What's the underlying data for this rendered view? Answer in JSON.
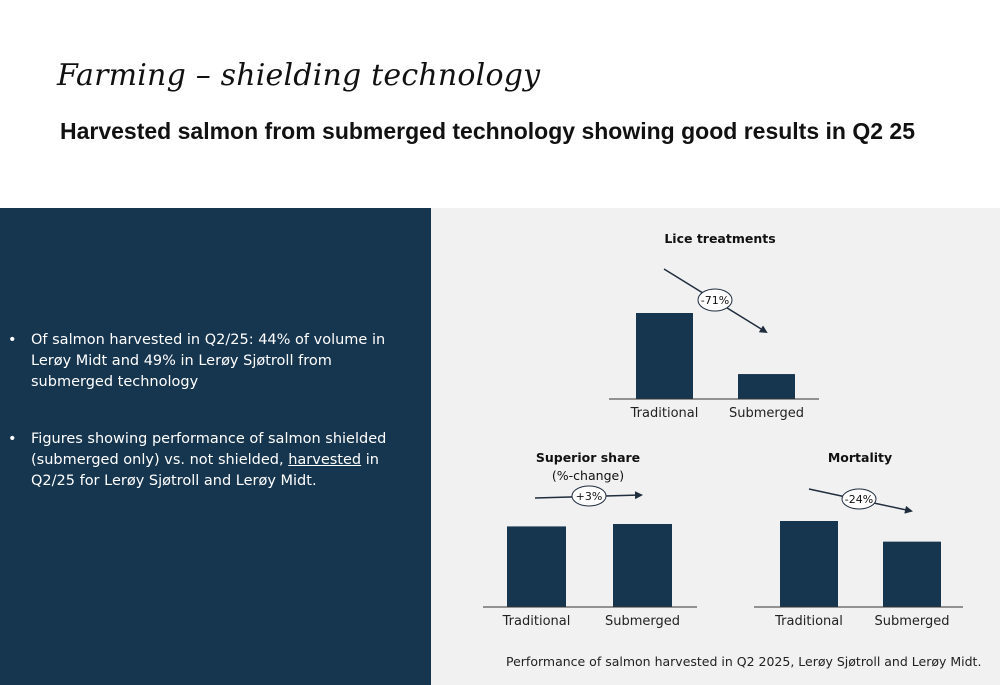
{
  "header": {
    "script_title": "Farming – shielding technology",
    "headline": "Harvested salmon from submerged technology showing good results in Q2 25"
  },
  "bullets": {
    "dot": "•",
    "b1": "Of salmon harvested in Q2/25: 44% of volume in Lerøy Midt and 49% in Lerøy Sjøtroll from submerged technology",
    "b2_before": "Figures showing performance of salmon shielded (submerged only) vs. not shielded, ",
    "b2_underlined": "harvested",
    "b2_after": " in Q2/25 for Lerøy Sjøtroll and Lerøy Midt."
  },
  "footnote": "Performance of salmon harvested in Q2 2025, Lerøy Sjøtroll and Lerøy Midt.",
  "colors": {
    "bar": "#16354f",
    "panel": "#16354f",
    "background": "#f1f1f1"
  },
  "chart_data": [
    {
      "type": "bar",
      "title": "Lice treatments",
      "subtitle": "",
      "categories": [
        "Traditional",
        "Submerged"
      ],
      "values": [
        100,
        29
      ],
      "annotation": "-71%",
      "ylim": [
        0,
        100
      ]
    },
    {
      "type": "bar",
      "title": "Superior share",
      "subtitle": "(%-change)",
      "categories": [
        "Traditional",
        "Submerged"
      ],
      "values": [
        100,
        103
      ],
      "annotation": "+3%",
      "ylim": [
        0,
        103
      ]
    },
    {
      "type": "bar",
      "title": "Mortality",
      "subtitle": "",
      "categories": [
        "Traditional",
        "Submerged"
      ],
      "values": [
        100,
        76
      ],
      "annotation": "-24%",
      "ylim": [
        0,
        100
      ]
    }
  ]
}
